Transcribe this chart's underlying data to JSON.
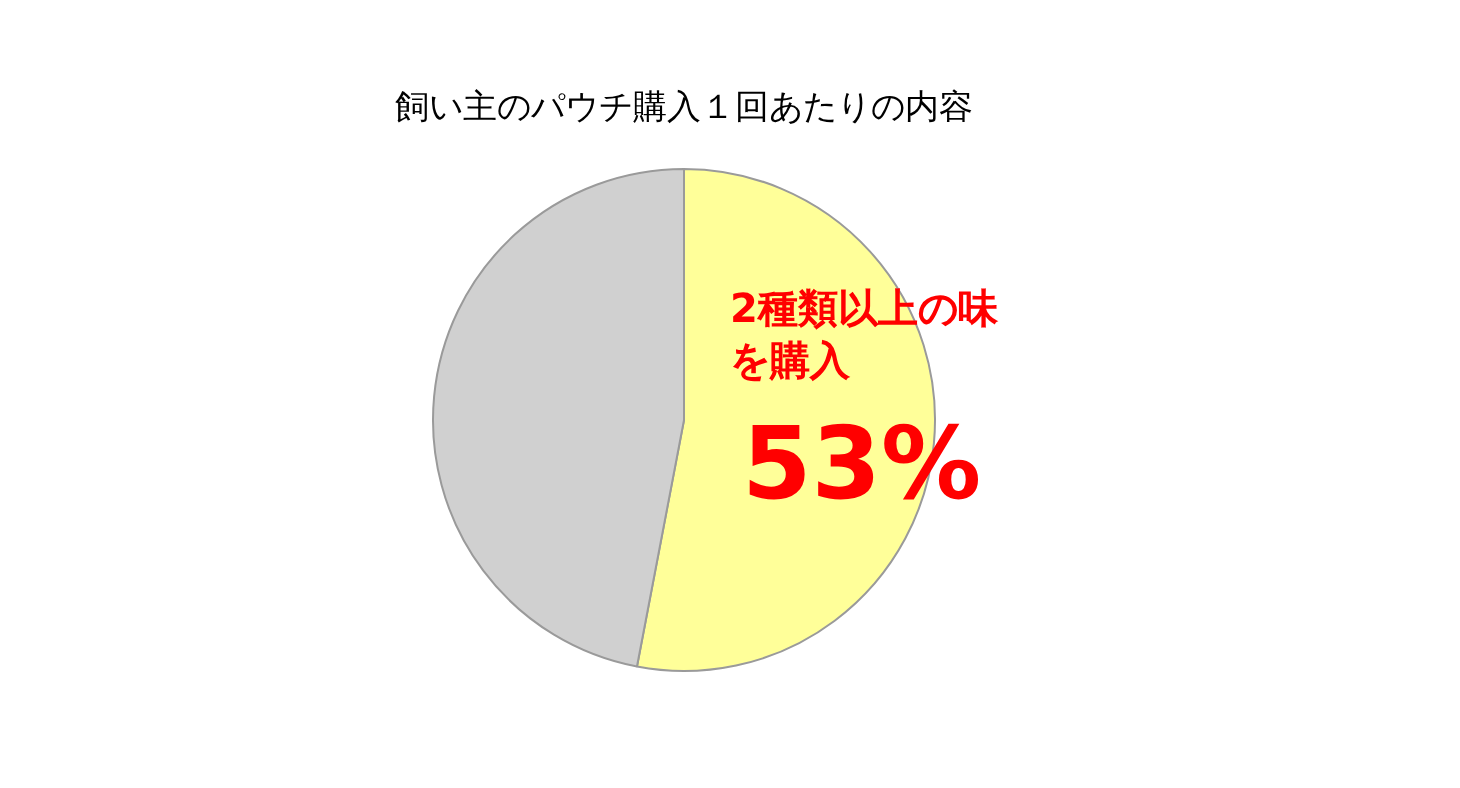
{
  "chart_data": {
    "type": "pie",
    "title": "飼い主のパウチ購入１回あたりの内容",
    "categories": [
      "2種類以上の味を購入",
      null
    ],
    "values": [
      53,
      47
    ],
    "colors": [
      "#ffff99",
      "#d0d0d0"
    ],
    "value_labels": [
      "53%",
      null
    ],
    "legend": false
  }
}
